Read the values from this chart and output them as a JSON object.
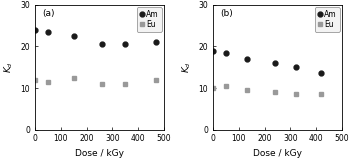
{
  "panel_a": {
    "label": "(a)",
    "am_x": [
      0,
      50,
      150,
      260,
      350,
      470
    ],
    "am_y": [
      24.0,
      23.5,
      22.5,
      20.5,
      20.5,
      21.0
    ],
    "eu_x": [
      0,
      50,
      150,
      260,
      350,
      470
    ],
    "eu_y": [
      12.0,
      11.5,
      12.5,
      11.0,
      11.0,
      12.0
    ]
  },
  "panel_b": {
    "label": "(b)",
    "am_x": [
      0,
      50,
      130,
      240,
      320,
      420
    ],
    "am_y": [
      19.0,
      18.5,
      17.0,
      16.0,
      15.0,
      13.5
    ],
    "eu_x": [
      0,
      50,
      130,
      240,
      320,
      420
    ],
    "eu_y": [
      10.0,
      10.5,
      9.5,
      9.0,
      8.5,
      8.5
    ]
  },
  "am_color": "#1a1a1a",
  "eu_color": "#999999",
  "marker_am": "o",
  "marker_eu": "s",
  "markersize_am": 3.5,
  "markersize_eu": 3.2,
  "xlim": [
    0,
    500
  ],
  "ylim": [
    0,
    30
  ],
  "yticks": [
    0,
    10,
    20,
    30
  ],
  "xticks": [
    0,
    100,
    200,
    300,
    400,
    500
  ],
  "xlabel": "Dose / kGy",
  "ylabel": "$K_d$",
  "legend_am": "Am",
  "legend_eu": "Eu",
  "bg_color": "#ffffff",
  "label_fontsize": 6.5,
  "tick_fontsize": 5.5,
  "legend_fontsize": 5.5,
  "axis_label_fontsize": 6.5
}
